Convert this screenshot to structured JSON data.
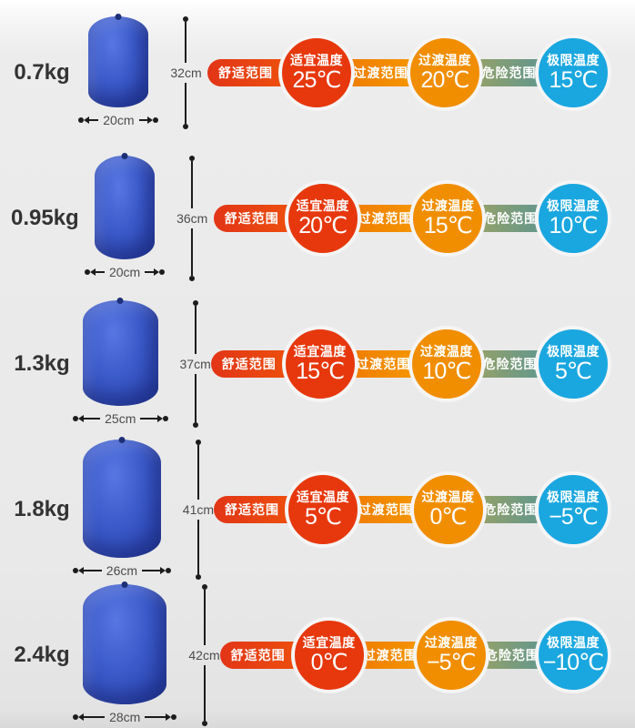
{
  "shared": {
    "comfort_range": "舒适范围",
    "comfort_title": "适宜温度",
    "transition_range": "过渡范围",
    "transition_title": "过渡温度",
    "danger_range": "危险范围",
    "limit_title": "极限温度"
  },
  "rows": [
    {
      "weight": "0.7kg",
      "bag": {
        "w_cm": 20,
        "h_cm": 32,
        "w_label": "20cm",
        "h_label": "32cm"
      },
      "temps": {
        "comfort": "25℃",
        "transition": "20℃",
        "limit": "15℃"
      }
    },
    {
      "weight": "0.95kg",
      "bag": {
        "w_cm": 20,
        "h_cm": 36,
        "w_label": "20cm",
        "h_label": "36cm"
      },
      "temps": {
        "comfort": "20℃",
        "transition": "15℃",
        "limit": "10℃"
      }
    },
    {
      "weight": "1.3kg",
      "bag": {
        "w_cm": 25,
        "h_cm": 37,
        "w_label": "25cm",
        "h_label": "37cm"
      },
      "temps": {
        "comfort": "15℃",
        "transition": "10℃",
        "limit": "5℃"
      }
    },
    {
      "weight": "1.8kg",
      "bag": {
        "w_cm": 26,
        "h_cm": 41,
        "w_label": "26cm",
        "h_label": "41cm"
      },
      "temps": {
        "comfort": "5℃",
        "transition": "0℃",
        "limit": "−5℃"
      }
    },
    {
      "weight": "2.4kg",
      "bag": {
        "w_cm": 28,
        "h_cm": 42,
        "w_label": "28cm",
        "h_label": "42cm"
      },
      "temps": {
        "comfort": "0℃",
        "transition": "−5℃",
        "limit": "−10℃"
      }
    }
  ],
  "colors": {
    "comfort_bar_start": "#e23517",
    "comfort_bar_end": "#f1580a",
    "comfort_circle": "#e7380d",
    "transition_bar_start": "#ee7300",
    "transition_bar_end": "#f6a000",
    "transition_circle": "#f18e00",
    "danger_bar_start": "#a9a65b",
    "danger_bar_end": "#4d929b",
    "limit_circle": "#1aa7e0",
    "circle_ring": "#f5f5f5",
    "bag_blue": "#3d5ccc"
  }
}
